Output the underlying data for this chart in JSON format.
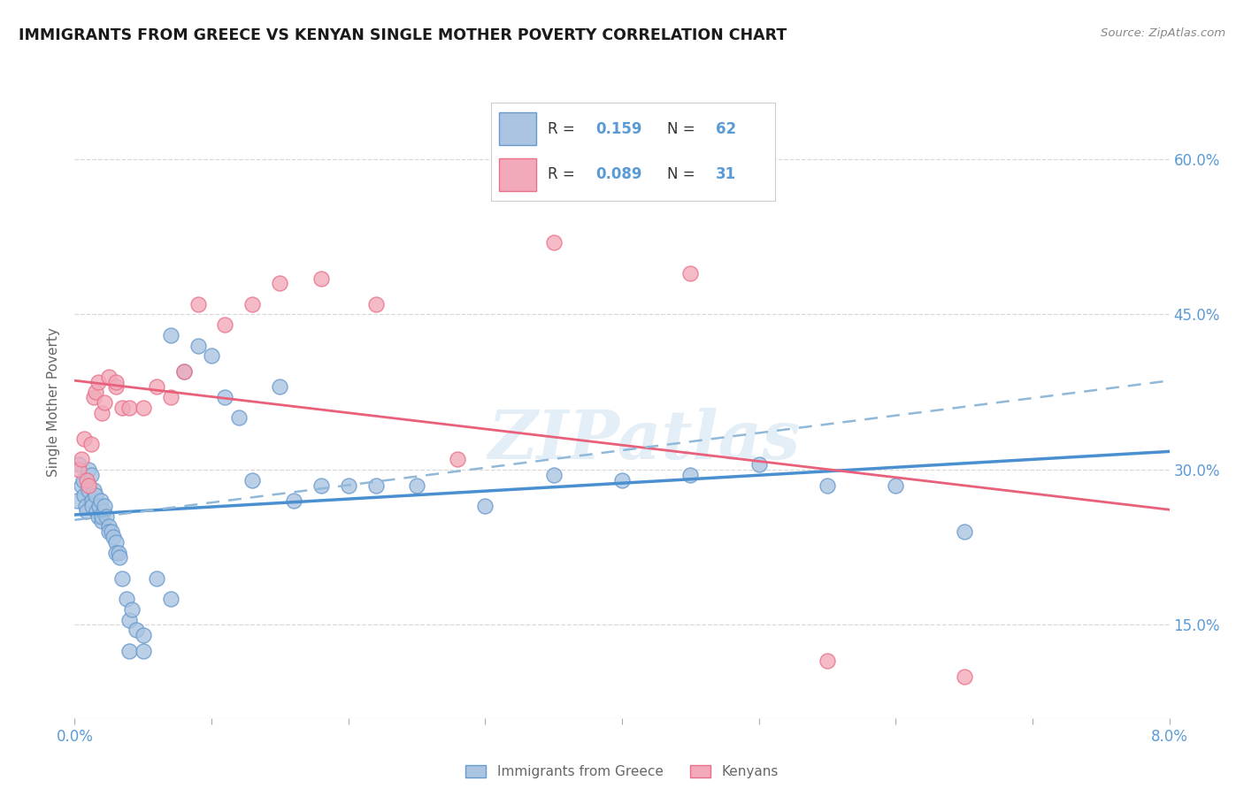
{
  "title": "IMMIGRANTS FROM GREECE VS KENYAN SINGLE MOTHER POVERTY CORRELATION CHART",
  "source": "Source: ZipAtlas.com",
  "ylabel": "Single Mother Poverty",
  "legend_label1": "Immigrants from Greece",
  "legend_label2": "Kenyans",
  "r1": "0.159",
  "n1": "62",
  "r2": "0.089",
  "n2": "31",
  "color_blue": "#aac4e2",
  "color_pink": "#f2aaba",
  "edge_blue": "#6699cc",
  "edge_pink": "#e8708a",
  "trend_blue_solid": "#4a90d0",
  "trend_pink_solid": "#e8607a",
  "trend_blue_dashed": "#90b8d8",
  "ytick_color": "#5b9bd5",
  "xtick_color": "#5b9bd5",
  "yticks_labels": [
    "60.0%",
    "45.0%",
    "30.0%",
    "15.0%"
  ],
  "yticks_vals": [
    0.6,
    0.45,
    0.3,
    0.15
  ],
  "xlim": [
    0.0,
    0.08
  ],
  "ylim": [
    0.06,
    0.67
  ],
  "blue_x": [
    0.0002,
    0.0003,
    0.0005,
    0.0006,
    0.0007,
    0.0008,
    0.0009,
    0.001,
    0.001,
    0.0012,
    0.0013,
    0.0013,
    0.0014,
    0.0015,
    0.0016,
    0.0017,
    0.0018,
    0.0019,
    0.002,
    0.002,
    0.0021,
    0.0022,
    0.0023,
    0.0025,
    0.0025,
    0.0027,
    0.0028,
    0.003,
    0.003,
    0.0032,
    0.0033,
    0.0035,
    0.0038,
    0.004,
    0.004,
    0.0042,
    0.0045,
    0.005,
    0.005,
    0.006,
    0.007,
    0.007,
    0.008,
    0.009,
    0.01,
    0.011,
    0.012,
    0.013,
    0.015,
    0.016,
    0.018,
    0.02,
    0.022,
    0.025,
    0.03,
    0.035,
    0.04,
    0.045,
    0.05,
    0.055,
    0.06,
    0.065
  ],
  "blue_y": [
    0.27,
    0.305,
    0.285,
    0.29,
    0.275,
    0.265,
    0.26,
    0.28,
    0.3,
    0.295,
    0.27,
    0.265,
    0.28,
    0.275,
    0.26,
    0.255,
    0.265,
    0.27,
    0.25,
    0.255,
    0.26,
    0.265,
    0.255,
    0.245,
    0.24,
    0.24,
    0.235,
    0.23,
    0.22,
    0.22,
    0.215,
    0.195,
    0.175,
    0.155,
    0.125,
    0.165,
    0.145,
    0.14,
    0.125,
    0.195,
    0.175,
    0.43,
    0.395,
    0.42,
    0.41,
    0.37,
    0.35,
    0.29,
    0.38,
    0.27,
    0.285,
    0.285,
    0.285,
    0.285,
    0.265,
    0.295,
    0.29,
    0.295,
    0.305,
    0.285,
    0.285,
    0.24
  ],
  "pink_x": [
    0.0003,
    0.0005,
    0.0007,
    0.0009,
    0.001,
    0.0012,
    0.0014,
    0.0015,
    0.0017,
    0.002,
    0.0022,
    0.0025,
    0.003,
    0.003,
    0.0035,
    0.004,
    0.005,
    0.006,
    0.007,
    0.008,
    0.009,
    0.011,
    0.013,
    0.015,
    0.018,
    0.022,
    0.028,
    0.035,
    0.045,
    0.055,
    0.065
  ],
  "pink_y": [
    0.3,
    0.31,
    0.33,
    0.29,
    0.285,
    0.325,
    0.37,
    0.375,
    0.385,
    0.355,
    0.365,
    0.39,
    0.38,
    0.385,
    0.36,
    0.36,
    0.36,
    0.38,
    0.37,
    0.395,
    0.46,
    0.44,
    0.46,
    0.48,
    0.485,
    0.46,
    0.31,
    0.52,
    0.49,
    0.115,
    0.1
  ],
  "watermark": "ZIPatlas",
  "bg_color": "#ffffff",
  "grid_color": "#d8d8d8"
}
